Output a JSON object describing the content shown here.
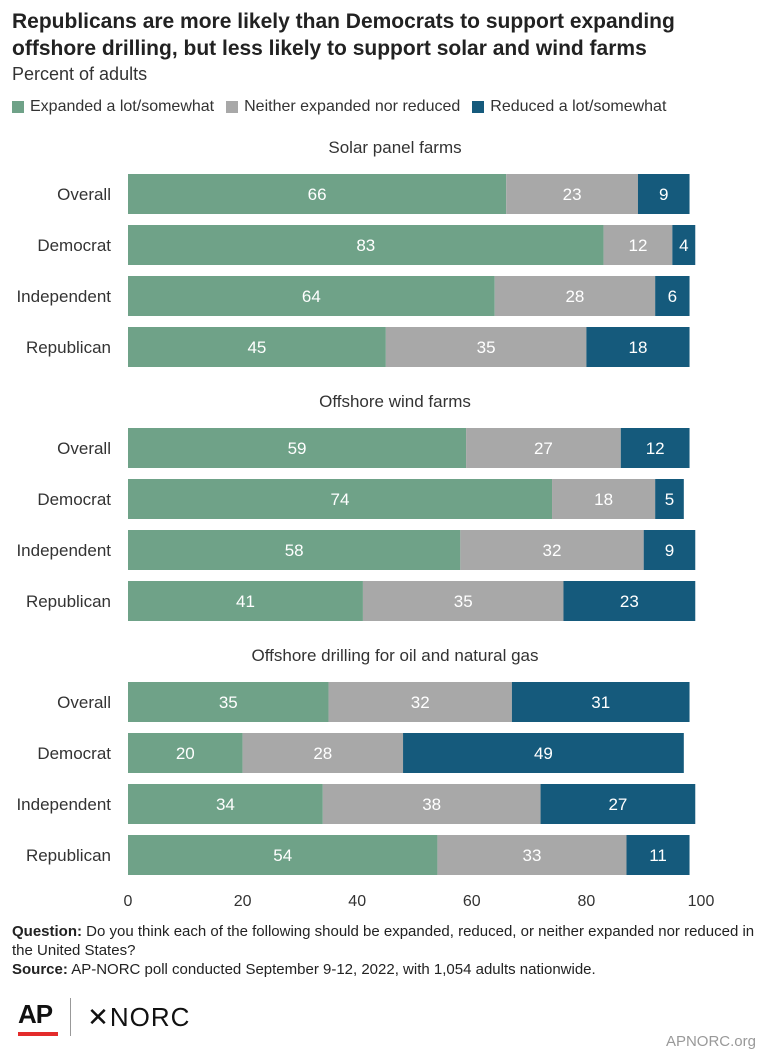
{
  "header": {
    "title": "Republicans are more likely than Democrats to support expanding offshore drilling, but less likely to support solar and wind farms",
    "subtitle": "Percent of adults"
  },
  "legend": [
    {
      "label": "Expanded a lot/somewhat",
      "color": "#6fa288"
    },
    {
      "label": "Neither expanded nor reduced",
      "color": "#a8a8a8"
    },
    {
      "label": "Reduced a lot/somewhat",
      "color": "#155a7c"
    }
  ],
  "chart_data": {
    "type": "bar",
    "orientation": "horizontal",
    "stacked": true,
    "xlim": [
      0,
      100
    ],
    "xticks": [
      0,
      20,
      40,
      60,
      80,
      100
    ],
    "series_names": [
      "Expanded a lot/somewhat",
      "Neither expanded nor reduced",
      "Reduced a lot/somewhat"
    ],
    "panels": [
      {
        "title": "Solar panel farms",
        "rows": [
          {
            "label": "Overall",
            "values": [
              66,
              23,
              9
            ]
          },
          {
            "label": "Democrat",
            "values": [
              83,
              12,
              4
            ]
          },
          {
            "label": "Independent",
            "values": [
              64,
              28,
              6
            ]
          },
          {
            "label": "Republican",
            "values": [
              45,
              35,
              18
            ]
          }
        ]
      },
      {
        "title": "Offshore wind farms",
        "rows": [
          {
            "label": "Overall",
            "values": [
              59,
              27,
              12
            ]
          },
          {
            "label": "Democrat",
            "values": [
              74,
              18,
              5
            ]
          },
          {
            "label": "Independent",
            "values": [
              58,
              32,
              9
            ]
          },
          {
            "label": "Republican",
            "values": [
              41,
              35,
              23
            ]
          }
        ]
      },
      {
        "title": "Offshore drilling for oil and natural gas",
        "rows": [
          {
            "label": "Overall",
            "values": [
              35,
              32,
              31
            ]
          },
          {
            "label": "Democrat",
            "values": [
              20,
              28,
              49
            ]
          },
          {
            "label": "Independent",
            "values": [
              34,
              38,
              27
            ]
          },
          {
            "label": "Republican",
            "values": [
              54,
              33,
              11
            ]
          }
        ]
      }
    ]
  },
  "footer": {
    "question_label": "Question:",
    "question_text": "Do you think each of the following should be expanded, reduced, or neither expanded nor reduced in the United States?",
    "source_label": "Source:",
    "source_text": "AP-NORC poll conducted September 9-12, 2022, with 1,054 adults nationwide.",
    "ap_logo": "AP",
    "norc_logo": "✕NORC",
    "site": "APNORC.org"
  }
}
